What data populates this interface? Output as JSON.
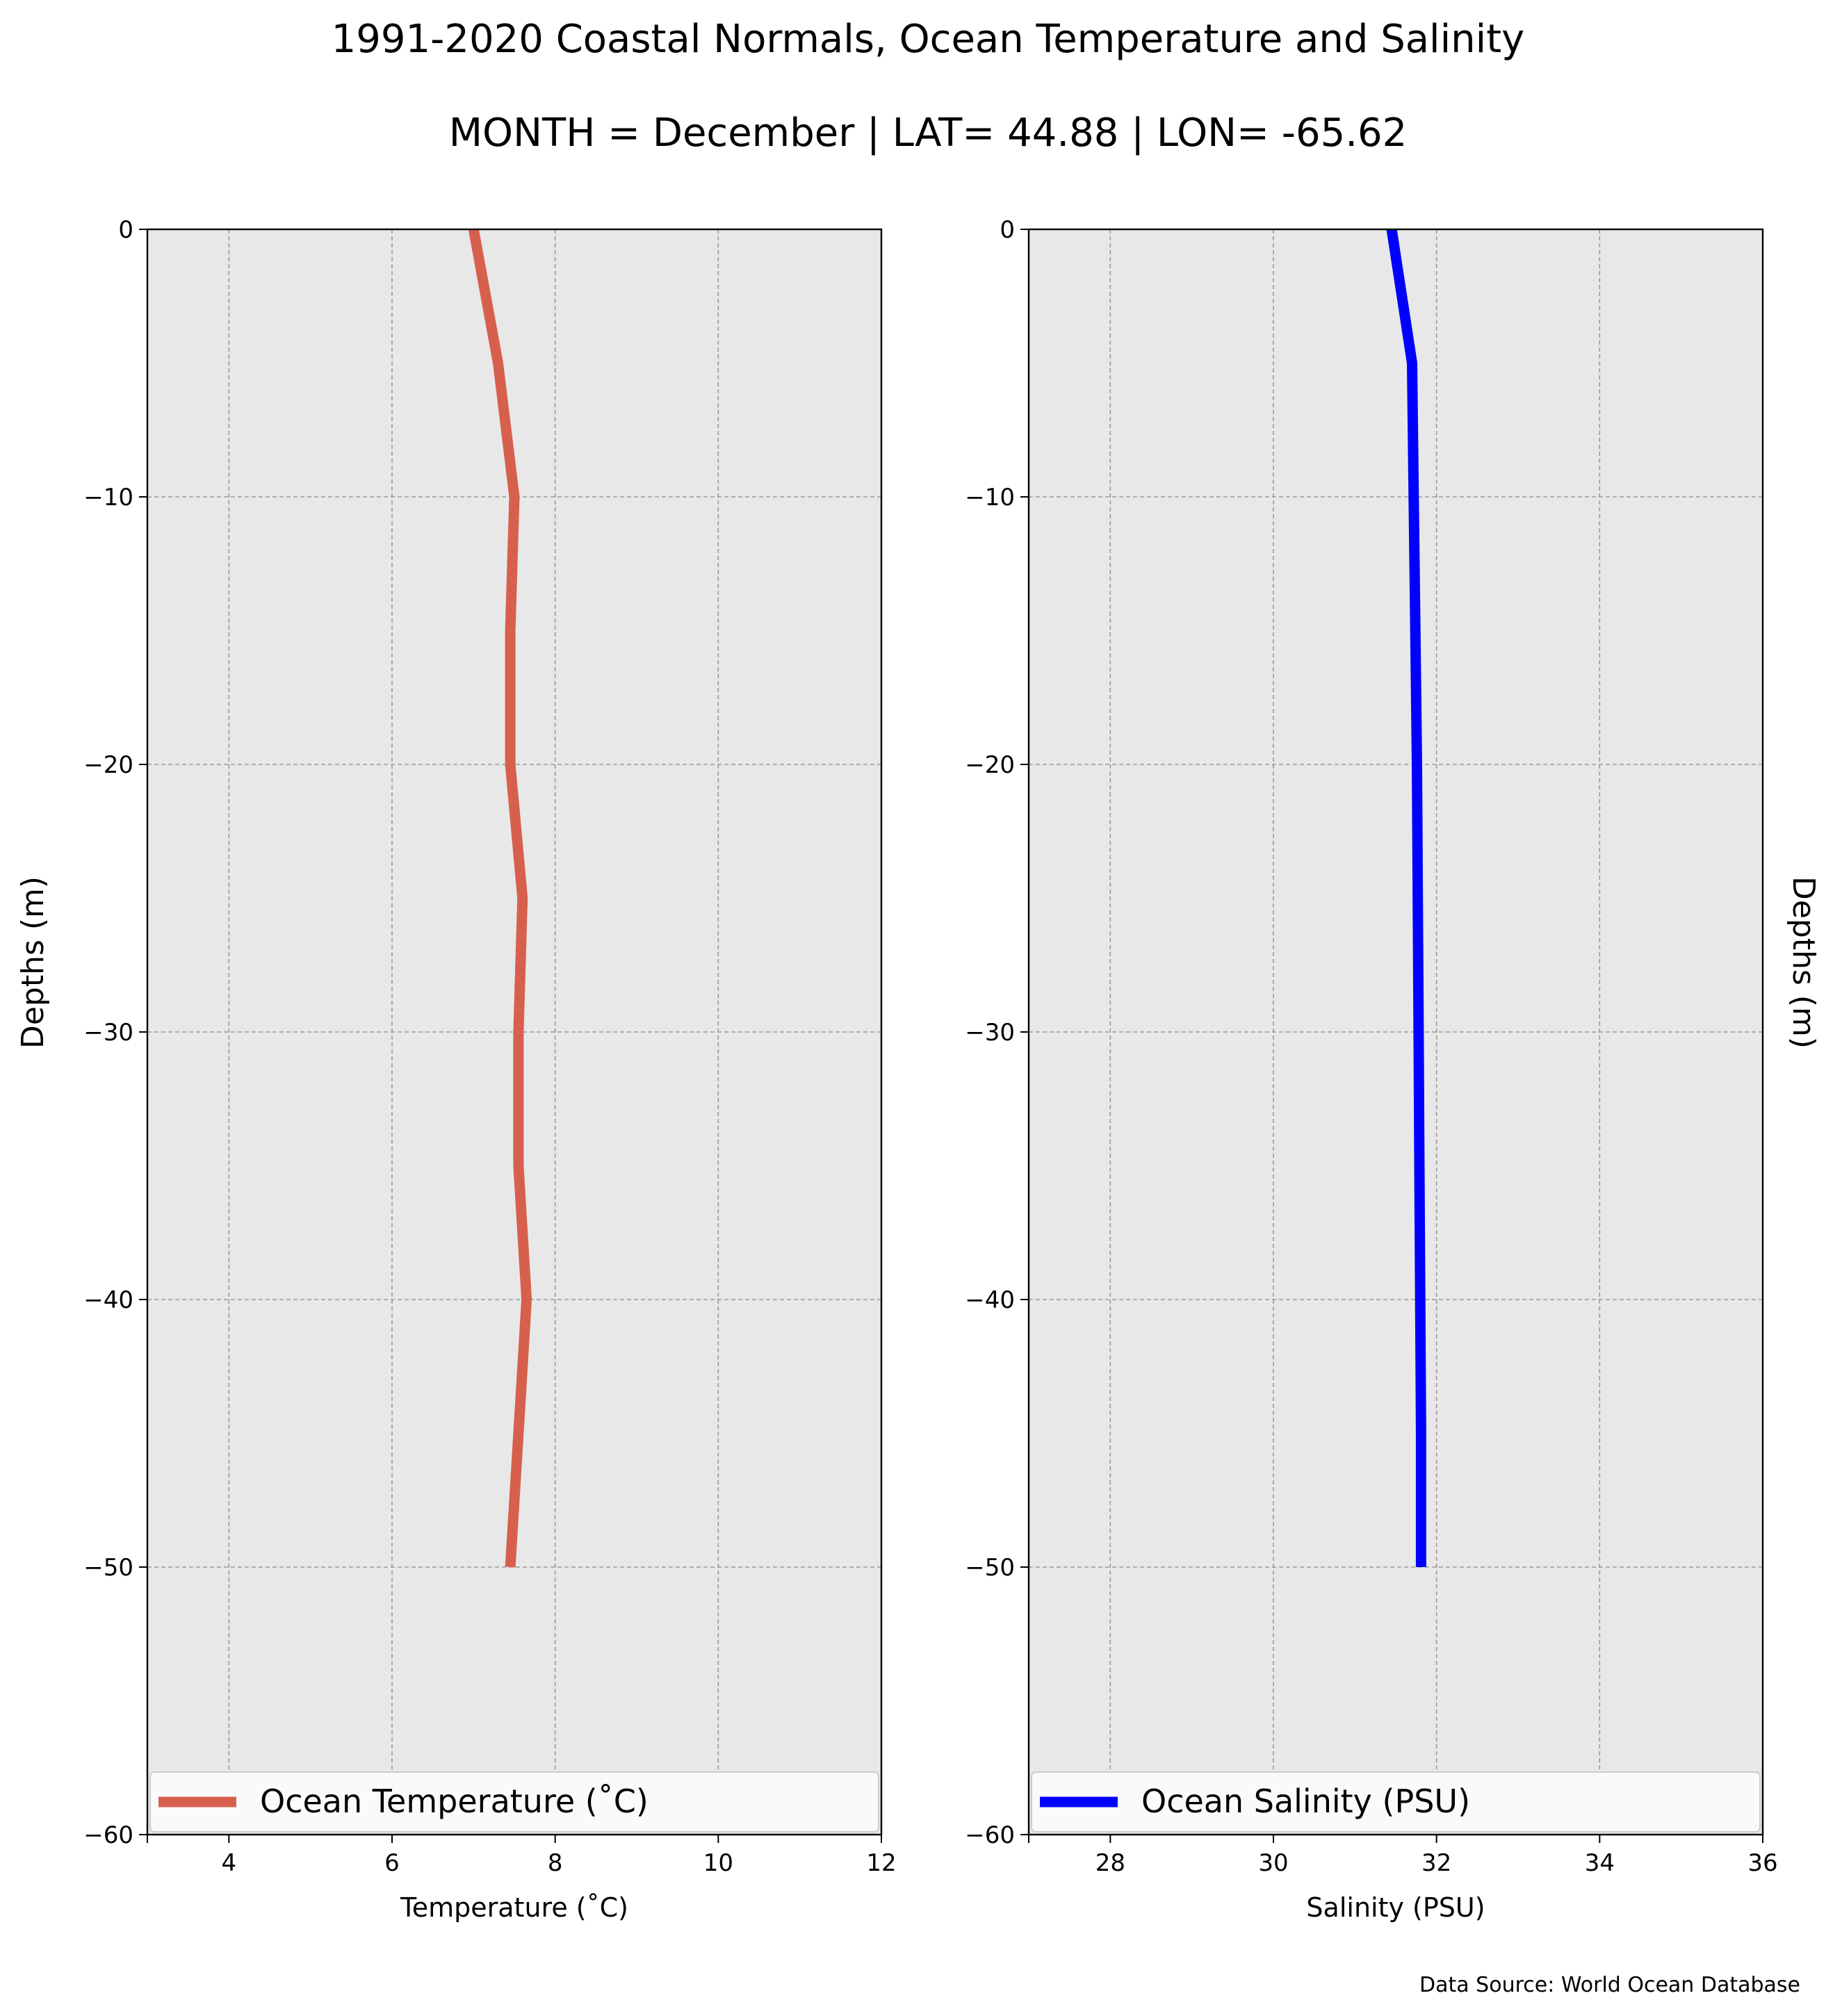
{
  "figure": {
    "title": "1991-2020 Coastal Normals, Ocean Temperature and Salinity",
    "subtitle": "MONTH = December | LAT= 44.88 | LON= -65.62",
    "source": "Data Source: World Ocean Database",
    "plot_bg": "#e8e8e8",
    "grid_color": "#999999"
  },
  "chart_data": [
    {
      "type": "line",
      "xlabel": "Temperature ($^\\circ$C)",
      "xlabel_display": "Temperature (˚C)",
      "ylabel": "Depths (m)",
      "xlim": [
        3,
        12
      ],
      "ylim": [
        -60,
        0
      ],
      "xticks": [
        4,
        6,
        8,
        10,
        12
      ],
      "yticks": [
        0,
        -10,
        -20,
        -30,
        -40,
        -50,
        -60
      ],
      "ytick_labels": [
        "0",
        "−10",
        "−20",
        "−30",
        "−40",
        "−50",
        "−60"
      ],
      "grid": true,
      "legend_position": "bottom",
      "series": [
        {
          "name": "Ocean Temperature (˚C)",
          "color": "#d6604d",
          "x": [
            7.0,
            7.3,
            7.5,
            7.45,
            7.45,
            7.6,
            7.55,
            7.55,
            7.65,
            7.55,
            7.45
          ],
          "y": [
            0,
            -5,
            -10,
            -15,
            -20,
            -25,
            -30,
            -35,
            -40,
            -45,
            -50
          ]
        }
      ]
    },
    {
      "type": "line",
      "xlabel": "Salinity (PSU)",
      "ylabel": "Depths (m)",
      "xlim": [
        27,
        36
      ],
      "ylim": [
        -60,
        0
      ],
      "xticks": [
        28,
        30,
        32,
        34,
        36
      ],
      "yticks": [
        0,
        -10,
        -20,
        -30,
        -40,
        -50,
        -60
      ],
      "ytick_labels": [
        "0",
        "−10",
        "−20",
        "−30",
        "−40",
        "−50",
        "−60"
      ],
      "grid": true,
      "legend_position": "bottom",
      "series": [
        {
          "name": "Ocean Salinity (PSU)",
          "color": "#0000ff",
          "x": [
            31.45,
            31.7,
            31.72,
            31.74,
            31.76,
            31.77,
            31.78,
            31.79,
            31.8,
            31.81,
            31.81
          ],
          "y": [
            0,
            -5,
            -10,
            -15,
            -20,
            -25,
            -30,
            -35,
            -40,
            -45,
            -50
          ]
        }
      ]
    }
  ]
}
